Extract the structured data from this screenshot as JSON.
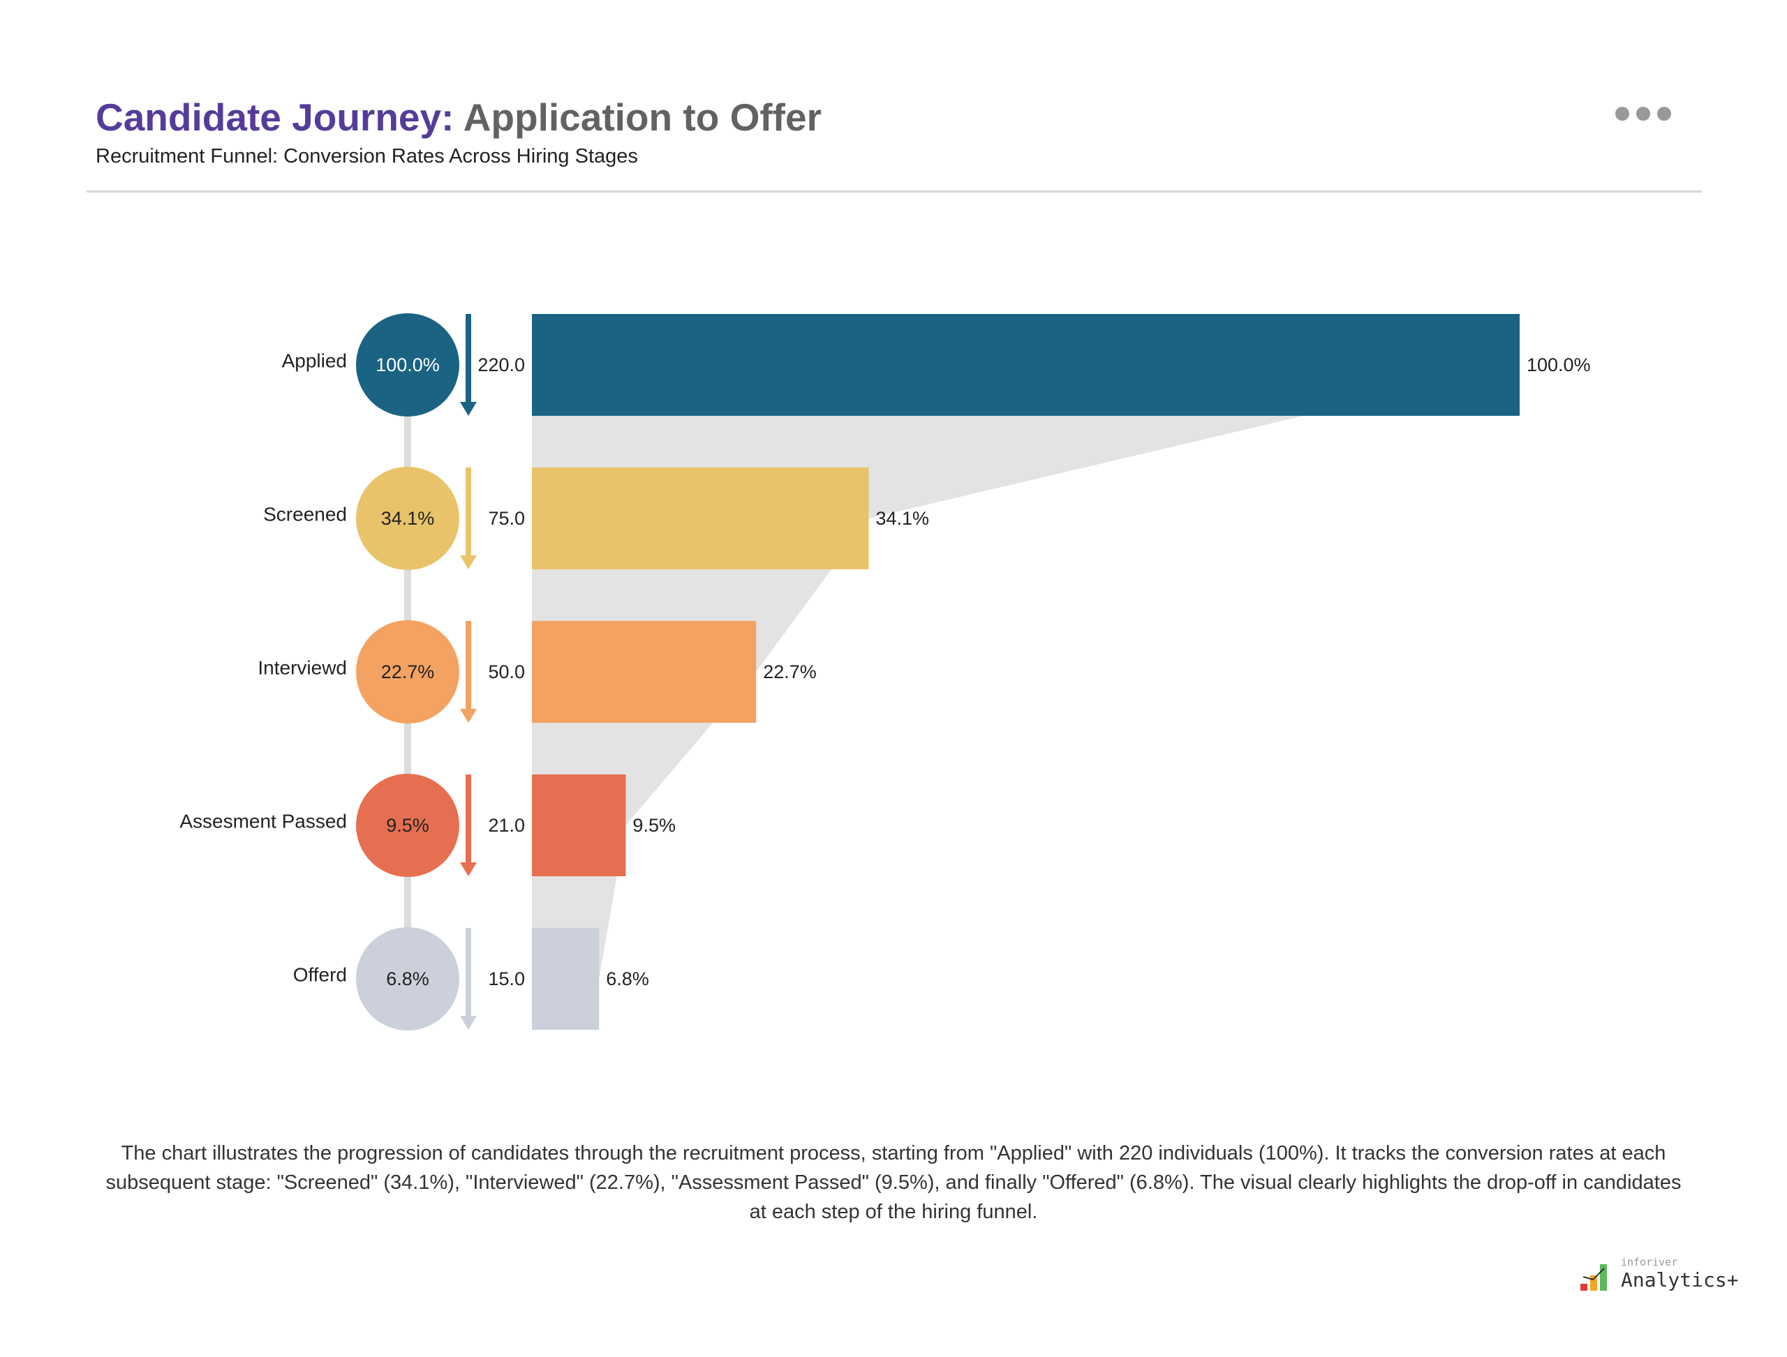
{
  "header": {
    "title_highlight": "Candidate Journey:",
    "title_rest": " Application to Offer",
    "subtitle": "Recruitment Funnel: Conversion Rates Across Hiring Stages",
    "more_icon": "more-horizontal-icon"
  },
  "chart_data": {
    "type": "funnel",
    "title": "Candidate Journey: Application to Offer",
    "subtitle": "Recruitment Funnel: Conversion Rates Across Hiring Stages",
    "categories": [
      "Applied",
      "Screened",
      "Interviewd",
      "Assesment Passed",
      "Offerd"
    ],
    "values": [
      220.0,
      75.0,
      50.0,
      21.0,
      15.0
    ],
    "value_labels": [
      "220.0",
      "75.0",
      "50.0",
      "21.0",
      "15.0"
    ],
    "percent_values": [
      100.0,
      34.1,
      22.7,
      9.5,
      6.8
    ],
    "percent_labels": [
      "100.0%",
      "34.1%",
      "22.7%",
      "9.5%",
      "6.8%"
    ],
    "colors": [
      "#1a6382",
      "#e8c36a",
      "#f4a261",
      "#e76f51",
      "#cbd0da"
    ],
    "funnel_fill_color": "#e3e3e3"
  },
  "description": "The chart illustrates the progression of candidates through the recruitment process, starting from \"Applied\" with 220 individuals (100%). It tracks the conversion rates at each subsequent stage: \"Screened\" (34.1%), \"Interviewed\" (22.7%), \"Assessment Passed\" (9.5%), and finally \"Offered\" (6.8%). The visual clearly highlights the drop-off in candidates at each step of the hiring funnel.",
  "logo": {
    "brand_small": "inforiver",
    "brand_large": "Analytics+"
  }
}
